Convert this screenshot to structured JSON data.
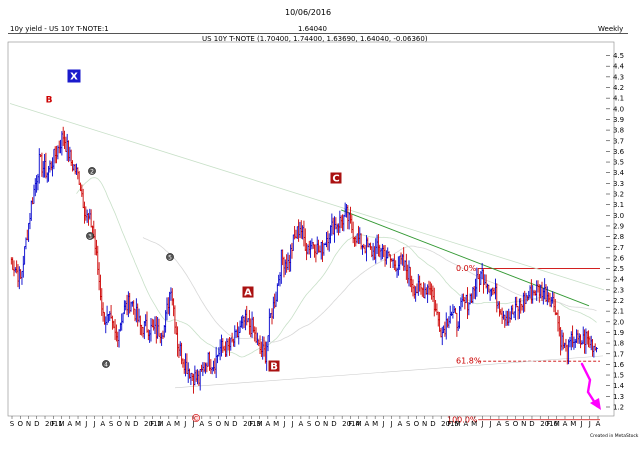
{
  "header": {
    "date": "10/06/2016",
    "symbol_label": "10y yield - US 10Y T-NOTE:1",
    "last_price": "1.64040",
    "period": "Weekly"
  },
  "chart_data": {
    "type": "candlestick",
    "title": "US 10Y T-NOTE (1.70400, 1.74400, 1.63690, 1.64040, -0.06360)",
    "ylim": [
      1.1,
      4.6
    ],
    "y_ticks": [
      "4.5",
      "4.4",
      "4.3",
      "4.2",
      "4.1",
      "4.0",
      "3.9",
      "3.8",
      "3.7",
      "3.6",
      "3.5",
      "3.4",
      "3.3",
      "3.2",
      "3.1",
      "3.0",
      "2.9",
      "2.8",
      "2.7",
      "2.6",
      "2.5",
      "2.4",
      "2.3",
      "2.2",
      "2.1",
      "2.0",
      "1.9",
      "1.8",
      "1.7",
      "1.6",
      "1.5",
      "1.4",
      "1.3",
      "1.2"
    ],
    "x_ticks": [
      "S",
      "O",
      "N",
      "D",
      "2011",
      "F",
      "M",
      "A",
      "M",
      "J",
      "J",
      "A",
      "S",
      "O",
      "N",
      "D",
      "2012",
      "F",
      "M",
      "A",
      "M",
      "J",
      "J",
      "A",
      "S",
      "O",
      "N",
      "D",
      "2013",
      "F",
      "M",
      "A",
      "M",
      "J",
      "J",
      "A",
      "S",
      "O",
      "N",
      "D",
      "2014",
      "F",
      "M",
      "A",
      "M",
      "J",
      "J",
      "A",
      "S",
      "O",
      "N",
      "D",
      "2015",
      "F",
      "M",
      "A",
      "M",
      "J",
      "J",
      "A",
      "S",
      "O",
      "N",
      "D",
      "2016",
      "F",
      "M",
      "A",
      "M",
      "J",
      "J",
      "A"
    ],
    "path": [
      [
        0,
        2.6
      ],
      [
        8,
        2.4
      ],
      [
        16,
        3.1
      ],
      [
        22,
        3.5
      ],
      [
        28,
        3.4
      ],
      [
        35,
        3.6
      ],
      [
        40,
        3.75
      ],
      [
        46,
        3.5
      ],
      [
        52,
        3.35
      ],
      [
        57,
        3.0
      ],
      [
        62,
        2.9
      ],
      [
        66,
        2.5
      ],
      [
        70,
        2.05
      ],
      [
        75,
        2.0
      ],
      [
        80,
        1.85
      ],
      [
        85,
        2.1
      ],
      [
        91,
        2.2
      ],
      [
        98,
        1.95
      ],
      [
        104,
        1.95
      ],
      [
        110,
        1.9
      ],
      [
        116,
        1.95
      ],
      [
        121,
        2.35
      ],
      [
        126,
        1.8
      ],
      [
        132,
        1.6
      ],
      [
        137,
        1.5
      ],
      [
        142,
        1.45
      ],
      [
        148,
        1.65
      ],
      [
        153,
        1.6
      ],
      [
        158,
        1.75
      ],
      [
        164,
        1.75
      ],
      [
        170,
        1.85
      ],
      [
        176,
        2.0
      ],
      [
        182,
        1.95
      ],
      [
        187,
        1.75
      ],
      [
        192,
        1.7
      ],
      [
        196,
        2.05
      ],
      [
        200,
        2.25
      ],
      [
        204,
        2.6
      ],
      [
        209,
        2.55
      ],
      [
        213,
        2.75
      ],
      [
        218,
        2.9
      ],
      [
        223,
        2.7
      ],
      [
        228,
        2.75
      ],
      [
        233,
        2.65
      ],
      [
        238,
        2.8
      ],
      [
        243,
        2.9
      ],
      [
        249,
        2.95
      ],
      [
        253,
        3.0
      ],
      [
        258,
        2.85
      ],
      [
        263,
        2.75
      ],
      [
        268,
        2.7
      ],
      [
        273,
        2.65
      ],
      [
        279,
        2.7
      ],
      [
        284,
        2.6
      ],
      [
        289,
        2.55
      ],
      [
        295,
        2.55
      ],
      [
        300,
        2.45
      ],
      [
        305,
        2.3
      ],
      [
        311,
        2.3
      ],
      [
        316,
        2.35
      ],
      [
        320,
        2.1
      ],
      [
        325,
        1.9
      ],
      [
        331,
        2.1
      ],
      [
        336,
        2.0
      ],
      [
        340,
        2.15
      ],
      [
        345,
        2.2
      ],
      [
        350,
        2.35
      ],
      [
        355,
        2.45
      ],
      [
        360,
        2.35
      ],
      [
        365,
        2.25
      ],
      [
        370,
        2.1
      ],
      [
        375,
        2.05
      ],
      [
        380,
        2.1
      ],
      [
        386,
        2.2
      ],
      [
        390,
        2.25
      ],
      [
        395,
        2.3
      ],
      [
        400,
        2.3
      ],
      [
        405,
        2.25
      ],
      [
        410,
        2.15
      ],
      [
        414,
        1.85
      ],
      [
        419,
        1.7
      ],
      [
        423,
        1.85
      ],
      [
        428,
        1.8
      ],
      [
        433,
        1.85
      ],
      [
        437,
        1.8
      ],
      [
        441,
        1.75
      ]
    ],
    "fib_levels": [
      {
        "label": "0.0%",
        "value": 2.5
      },
      {
        "label": "61.8%",
        "value": 1.63
      },
      {
        "label": "100.0%",
        "value": 1.08
      }
    ],
    "wave_labels": [
      {
        "text": "X",
        "kind": "badge-blue"
      },
      {
        "text": "B",
        "kind": "text-red"
      },
      {
        "text": "C",
        "kind": "badge-red"
      },
      {
        "text": "A",
        "kind": "badge-red"
      },
      {
        "text": "B",
        "kind": "badge-red"
      },
      {
        "text": "2",
        "kind": "circle"
      },
      {
        "text": "3",
        "kind": "circle"
      },
      {
        "text": "4",
        "kind": "circle"
      },
      {
        "text": "5",
        "kind": "circle"
      },
      {
        "text": "C",
        "kind": "circle-red"
      }
    ],
    "colors": {
      "up": "#0000cc",
      "down": "#cc0000",
      "fib": "#cc0000",
      "trend_green": "#339933",
      "ma_light": "#c8e0c8",
      "arrow": "#ff00ff"
    },
    "credit": "Created in MetaStock"
  }
}
